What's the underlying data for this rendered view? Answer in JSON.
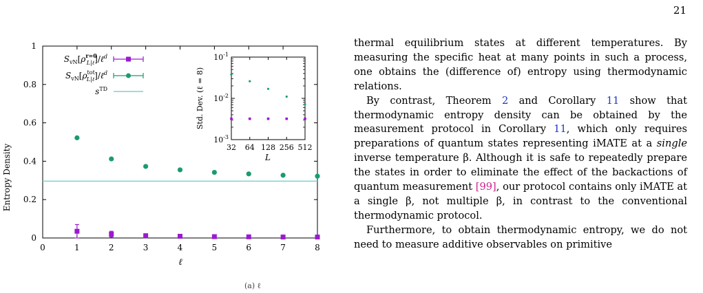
{
  "page_number": "21",
  "figure": {
    "caption_fragment": "(a) ℓ",
    "chart_data": [
      {
        "type": "scatter",
        "xlabel": "ℓ",
        "ylabel": "Entropy Density",
        "xlim": [
          0,
          8
        ],
        "ylim": [
          0,
          1
        ],
        "x_ticks": [
          "0",
          "1",
          "2",
          "3",
          "4",
          "5",
          "6",
          "7",
          "8"
        ],
        "y_ticks": [
          "0",
          "0.2",
          "0.4",
          "0.6",
          "0.8",
          "1"
        ],
        "legend_position": "top-left",
        "series": [
          {
            "name": "S_vN[ρ^{r=0}_{L|ℓ}]/ℓ^d",
            "color": "#9a1ad0",
            "marker": "square",
            "x": [
              1,
              2,
              3,
              4,
              5,
              6,
              7,
              8
            ],
            "y": [
              0.035,
              0.02,
              0.012,
              0.009,
              0.007,
              0.006,
              0.005,
              0.005
            ],
            "err": [
              0.035,
              0.015,
              0.005,
              0.003,
              0.002,
              0.002,
              0.001,
              0.001
            ]
          },
          {
            "name": "S_vN[ρ^{tot}_{L|ℓ}]/ℓ^d",
            "color": "#1a9b72",
            "marker": "circle",
            "x": [
              1,
              2,
              3,
              4,
              5,
              6,
              7,
              8
            ],
            "y": [
              0.522,
              0.412,
              0.373,
              0.355,
              0.342,
              0.334,
              0.327,
              0.322
            ]
          },
          {
            "name": "s^TD",
            "color": "#7fd0cf",
            "marker": "line",
            "value": 0.296
          }
        ]
      },
      {
        "type": "scatter",
        "xlabel": "L",
        "ylabel": "Std. Dev. (ℓ = 8)",
        "log_x": true,
        "log_y": true,
        "x_ticks": [
          "32",
          "64",
          "128",
          "256",
          "512"
        ],
        "y_ticks": [
          "10^-3",
          "10^-2",
          "10^-1"
        ],
        "ylim": [
          0.001,
          0.1
        ],
        "series": [
          {
            "color": "#1a9b72",
            "marker": "circle",
            "x": [
              32,
              64,
              128,
              256,
              512
            ],
            "y": [
              0.038,
              0.026,
              0.017,
              0.011,
              0.0072
            ]
          },
          {
            "color": "#9a1ad0",
            "marker": "square",
            "x": [
              32,
              64,
              128,
              256,
              512
            ],
            "y": [
              0.0032,
              0.0032,
              0.0032,
              0.0032,
              0.0032
            ]
          }
        ]
      }
    ]
  },
  "text": {
    "p1": "thermal equilibrium states at different temperatures. By measuring the specific heat at many points in such a process, one obtains the (difference of) entropy using thermodynamic relations.",
    "p2_a": "By contrast, Theorem ",
    "p2_ref1": "2",
    "p2_b": " and Corollary ",
    "p2_ref2": "11",
    "p2_c": " show that thermodynamic entropy density can be obtained by the measurement protocol in Corollary ",
    "p2_ref3": "11",
    "p2_d": ", which only requires preparations of quantum states representing iMATE at a ",
    "p2_em": "single",
    "p2_e": " inverse temperature β. Although it is safe to repeatedly prepare the states in order to eliminate the effect of the backactions of quantum measurement ",
    "p2_cite": "[99]",
    "p2_f": ", our protocol contains only iMATE at a single β, not multiple β, in contrast to the conventional thermodynamic protocol.",
    "p3": "Furthermore, to obtain thermodynamic entropy, we do not need to measure additive observables on primitive"
  }
}
